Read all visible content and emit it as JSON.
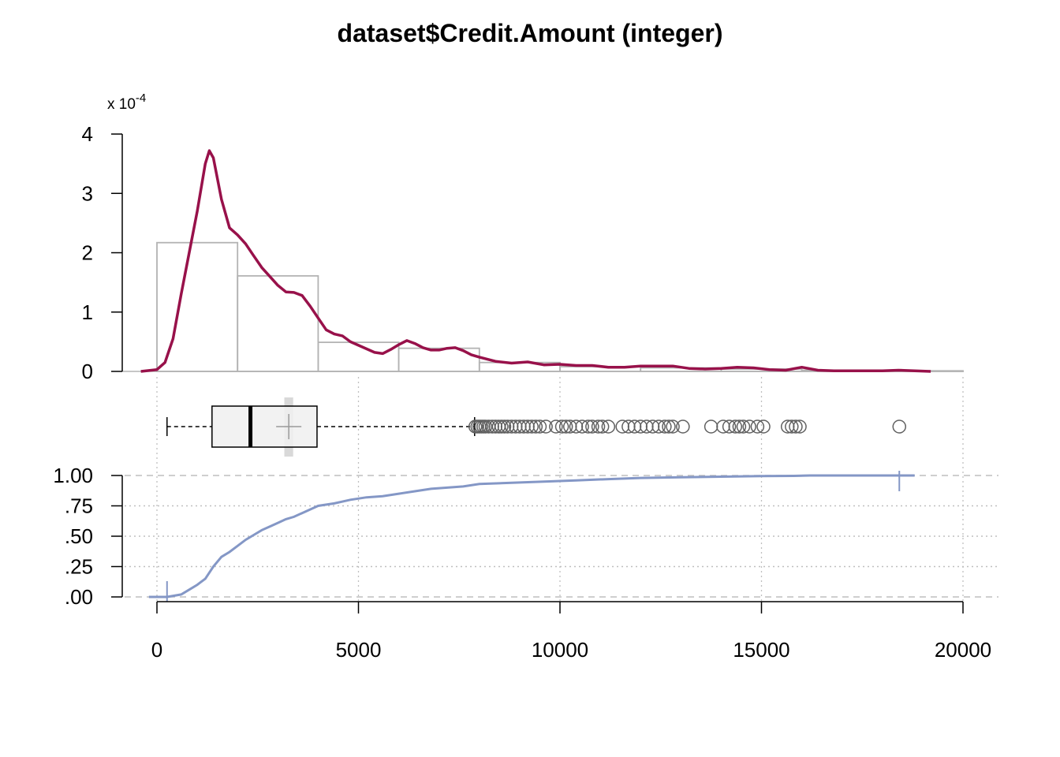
{
  "title": "dataset$Credit.Amount (integer)",
  "colors": {
    "density": "#98114A",
    "histogram": "#B3B3B3",
    "ecdf": "#8497C6",
    "box_fill": "#F0F0F0",
    "grid": "#BFBFBF",
    "mean_band": "#D9D9D9",
    "outlier": "#606060"
  },
  "chart_data": [
    {
      "type": "histogram",
      "panel": "density",
      "scale_note": {
        "prefix": "x 10",
        "exponent": "-4"
      },
      "yticks": [
        0,
        1,
        2,
        3,
        4
      ],
      "ylim": [
        0,
        4
      ],
      "xlim": [
        0,
        20000
      ],
      "bins": [
        {
          "from": 0,
          "to": 2000,
          "density": 2.17
        },
        {
          "from": 2000,
          "to": 4000,
          "density": 1.61
        },
        {
          "from": 4000,
          "to": 6000,
          "density": 0.49
        },
        {
          "from": 6000,
          "to": 8000,
          "density": 0.39
        },
        {
          "from": 8000,
          "to": 10000,
          "density": 0.15
        },
        {
          "from": 10000,
          "to": 12000,
          "density": 0.08
        },
        {
          "from": 12000,
          "to": 14000,
          "density": 0.06
        },
        {
          "from": 14000,
          "to": 16000,
          "density": 0.04
        },
        {
          "from": 16000,
          "to": 18000,
          "density": 0.02
        },
        {
          "from": 18000,
          "to": 20000,
          "density": 0.01
        }
      ],
      "density_curve": {
        "x": [
          -400,
          0,
          200,
          400,
          600,
          800,
          1000,
          1200,
          1300,
          1400,
          1600,
          1800,
          2000,
          2200,
          2400,
          2600,
          2800,
          3000,
          3200,
          3400,
          3600,
          3800,
          4000,
          4200,
          4400,
          4600,
          4800,
          5000,
          5200,
          5400,
          5600,
          5800,
          6000,
          6200,
          6400,
          6600,
          6800,
          7000,
          7200,
          7400,
          7600,
          7800,
          8000,
          8400,
          8800,
          9200,
          9600,
          10000,
          10400,
          10800,
          11200,
          11600,
          12000,
          12400,
          12800,
          13200,
          13600,
          14000,
          14400,
          14800,
          15200,
          15600,
          16000,
          16400,
          16800,
          17200,
          17600,
          18000,
          18400,
          18800,
          19200
        ],
        "y": [
          0,
          0.03,
          0.15,
          0.55,
          1.3,
          2.0,
          2.7,
          3.5,
          3.72,
          3.6,
          2.9,
          2.42,
          2.3,
          2.15,
          1.95,
          1.75,
          1.6,
          1.45,
          1.34,
          1.33,
          1.28,
          1.1,
          0.9,
          0.7,
          0.63,
          0.6,
          0.5,
          0.44,
          0.38,
          0.32,
          0.3,
          0.37,
          0.45,
          0.52,
          0.47,
          0.4,
          0.36,
          0.36,
          0.39,
          0.4,
          0.35,
          0.28,
          0.24,
          0.17,
          0.14,
          0.16,
          0.11,
          0.12,
          0.1,
          0.1,
          0.07,
          0.07,
          0.09,
          0.09,
          0.09,
          0.05,
          0.04,
          0.05,
          0.07,
          0.06,
          0.03,
          0.02,
          0.07,
          0.02,
          0.01,
          0.01,
          0.01,
          0.01,
          0.02,
          0.01,
          0.0
        ]
      }
    },
    {
      "type": "boxplot",
      "panel": "box",
      "whisker_low": 250,
      "q1": 1366,
      "median": 2320,
      "q3": 3972,
      "whisker_high": 7882,
      "mean": 3271,
      "mean_ci": [
        3160,
        3380
      ],
      "outliers": [
        7900,
        7950,
        8000,
        8050,
        8100,
        8150,
        8230,
        8320,
        8400,
        8480,
        8550,
        8620,
        8700,
        8800,
        8900,
        9000,
        9100,
        9200,
        9300,
        9400,
        9500,
        9650,
        9900,
        10050,
        10150,
        10250,
        10400,
        10550,
        10700,
        10800,
        10950,
        11050,
        11200,
        11550,
        11700,
        11850,
        12000,
        12150,
        12300,
        12450,
        12600,
        12700,
        12800,
        13050,
        13750,
        14050,
        14200,
        14350,
        14450,
        14550,
        14700,
        14900,
        15050,
        15650,
        15750,
        15850,
        15950,
        18420
      ]
    },
    {
      "type": "line",
      "panel": "ecdf",
      "yticks": [
        0,
        0.25,
        0.5,
        0.75,
        1.0
      ],
      "ytick_labels": [
        ".00",
        ".25",
        ".50",
        ".75",
        "1.00"
      ],
      "ylim": [
        0,
        1
      ],
      "xticks": [
        0,
        5000,
        10000,
        15000,
        20000
      ],
      "xtick_labels": [
        "0",
        "5000",
        "10000",
        "15000",
        "20000"
      ],
      "min_marker": 250,
      "max_marker": 18420,
      "x": [
        -200,
        250,
        600,
        800,
        1000,
        1200,
        1400,
        1600,
        1800,
        2000,
        2200,
        2400,
        2600,
        2800,
        3000,
        3200,
        3400,
        3600,
        3800,
        4000,
        4400,
        4800,
        5200,
        5600,
        6000,
        6400,
        6800,
        7200,
        7600,
        8000,
        8800,
        9600,
        10400,
        11200,
        12000,
        13000,
        14000,
        15000,
        15800,
        16200,
        18420,
        18800
      ],
      "y": [
        0,
        0,
        0.02,
        0.06,
        0.1,
        0.15,
        0.25,
        0.33,
        0.37,
        0.42,
        0.47,
        0.51,
        0.55,
        0.58,
        0.61,
        0.64,
        0.66,
        0.69,
        0.72,
        0.75,
        0.77,
        0.8,
        0.82,
        0.83,
        0.85,
        0.87,
        0.89,
        0.9,
        0.91,
        0.93,
        0.94,
        0.95,
        0.96,
        0.97,
        0.98,
        0.985,
        0.99,
        0.995,
        0.997,
        1.0,
        1.0,
        1.0
      ]
    }
  ]
}
